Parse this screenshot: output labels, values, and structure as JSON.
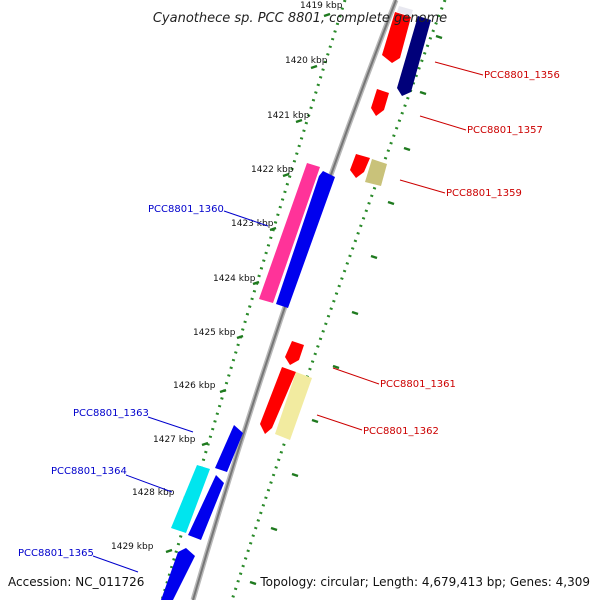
{
  "title": "Cyanothece sp. PCC 8801, complete genome",
  "footer": {
    "accession": "Accession: NC_011726",
    "topology": "Topology: circular; Length: 4,679,413 bp; Genes: 4,309"
  },
  "ticks": [
    {
      "label": "1419 kbp",
      "kbp": 1419
    },
    {
      "label": "1420 kbp",
      "kbp": 1420
    },
    {
      "label": "1421 kbp",
      "kbp": 1421
    },
    {
      "label": "1422 kbp",
      "kbp": 1422
    },
    {
      "label": "1423 kbp",
      "kbp": 1423
    },
    {
      "label": "1424 kbp",
      "kbp": 1424
    },
    {
      "label": "1425 kbp",
      "kbp": 1425
    },
    {
      "label": "1426 kbp",
      "kbp": 1426
    },
    {
      "label": "1427 kbp",
      "kbp": 1427
    },
    {
      "label": "1428 kbp",
      "kbp": 1428
    },
    {
      "label": "1429 kbp",
      "kbp": 1429
    }
  ],
  "gene_labels": {
    "right": [
      "PCC8801_1356",
      "PCC8801_1357",
      "PCC8801_1359",
      "PCC8801_1361",
      "PCC8801_1362"
    ],
    "left": [
      "PCC8801_1360",
      "PCC8801_1363",
      "PCC8801_1364",
      "PCC8801_1365"
    ]
  },
  "colors": {
    "backbone": "#8a8a8a",
    "ticks": "#2a8a2a",
    "label_right": "#cc0000",
    "label_left": "#0000cc",
    "red": "#ff0000",
    "navy": "#00007a",
    "blue": "#0000ee",
    "pink": "#ff3399",
    "khaki": "#c9c27a",
    "paleyellow": "#f2eba0",
    "cyan": "#00e5ee"
  }
}
